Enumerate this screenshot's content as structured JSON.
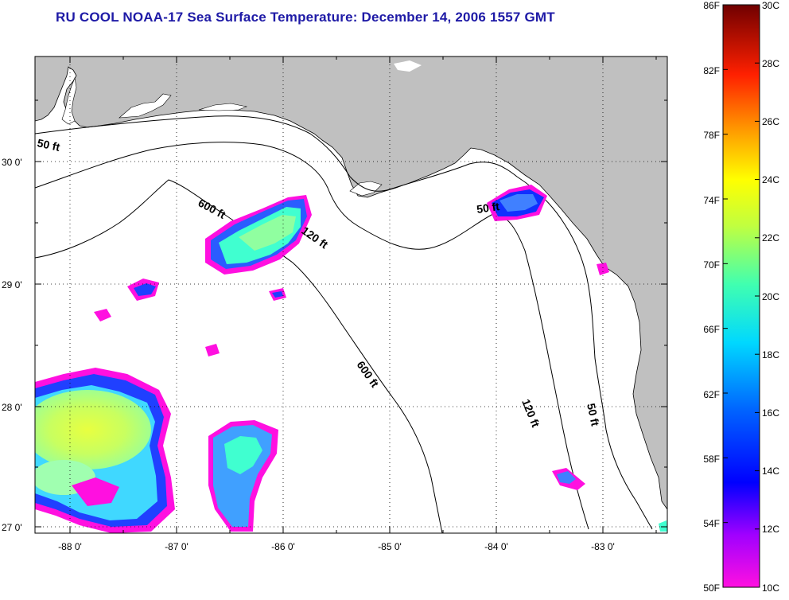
{
  "title": "RU COOL  NOAA-17  Sea Surface Temperature:  December 14, 2006 1557 GMT",
  "axes": {
    "lon_labels": [
      "-88 0'",
      "-87 0'",
      "-86 0'",
      "-85 0'",
      "-84 0'",
      "-83 0'"
    ],
    "lat_labels": [
      "30 0'",
      "29 0'",
      "28 0'",
      "27 0'"
    ]
  },
  "isobaths": {
    "labels": [
      "50 ft",
      "600 ft",
      "120 ft",
      "50 ft",
      "600 ft",
      "120 ft",
      "50 ft"
    ]
  },
  "colorbar": {
    "f_labels": [
      "86F",
      "82F",
      "78F",
      "74F",
      "70F",
      "66F",
      "62F",
      "58F",
      "54F",
      "50F"
    ],
    "c_labels": [
      "30C",
      "28C",
      "26C",
      "24C",
      "22C",
      "20C",
      "18C",
      "16C",
      "14C",
      "12C",
      "10C"
    ]
  },
  "colors": {
    "title": "#1e1aa6",
    "land": "#c0c0c0",
    "ocean": "#ffffff"
  }
}
